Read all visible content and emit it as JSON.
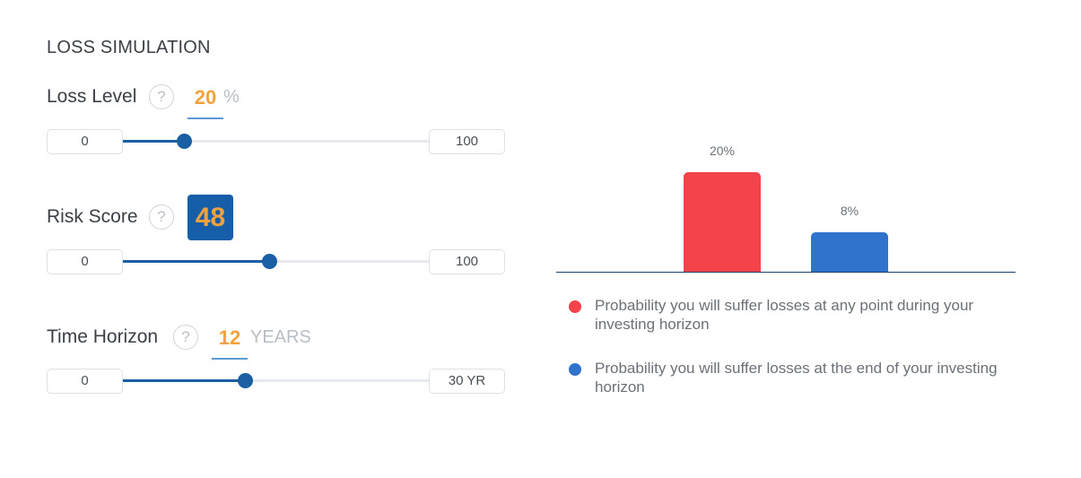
{
  "title": "LOSS SIMULATION",
  "help_glyph": "?",
  "loss_level": {
    "label": "Loss Level",
    "value": "20",
    "unit": "%",
    "min": "0",
    "max": "100",
    "fraction": 0.2
  },
  "risk_score": {
    "label": "Risk Score",
    "value": "48",
    "min": "0",
    "max": "100",
    "fraction": 0.48
  },
  "time_horizon": {
    "label": "Time Horizon",
    "value": "12",
    "unit": "YEARS",
    "min": "0",
    "max": "30 YR",
    "fraction": 0.4
  },
  "colors": {
    "accent_orange": "#f2a23c",
    "brand_blue": "#1a5ea3",
    "bar_red": "#f4434a",
    "bar_blue": "#2f73cc"
  },
  "chart_data": {
    "type": "bar",
    "categories": [
      "any point during horizon",
      "end of horizon"
    ],
    "values": [
      20,
      8
    ],
    "data_labels": [
      "20%",
      "8%"
    ],
    "colors": [
      "#f4434a",
      "#2f73cc"
    ],
    "ylim": [
      0,
      20
    ],
    "legend_position": "bottom"
  },
  "legend": [
    {
      "text": "Probability you will suffer losses at any point during your investing horizon",
      "color": "#f4434a"
    },
    {
      "text": "Probability you will suffer losses at the end of your investing horizon",
      "color": "#2f73cc"
    }
  ]
}
